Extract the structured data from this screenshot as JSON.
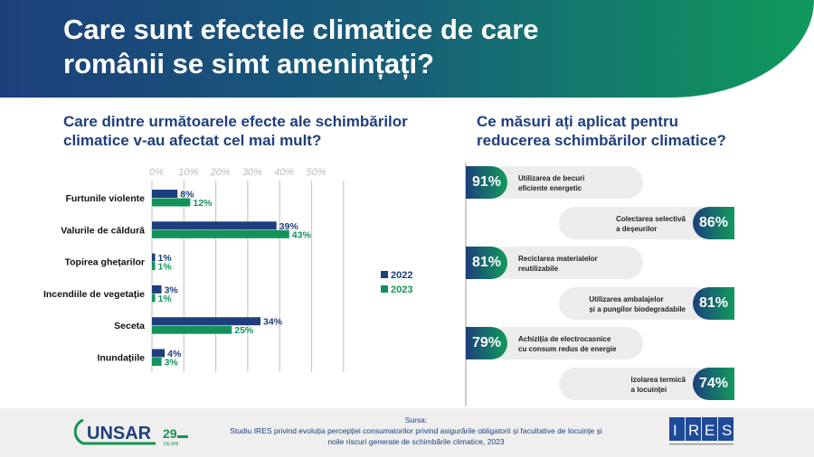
{
  "header": {
    "title": "Care sunt efectele climatice de care românii se simt amenințați?"
  },
  "left": {
    "question": "Care dintre următoarele efecte ale schimbărilor climatice v-au afectat cel mai mult?"
  },
  "right": {
    "question": "Ce măsuri ați aplicat pentru reducerea schimbărilor climatice?",
    "items": [
      {
        "value": "91%",
        "label1": "Utilizarea de becuri",
        "label2": "eficiente energetic"
      },
      {
        "value": "86%",
        "label1": "Colectarea selectivă",
        "label2": "a deșeurilor"
      },
      {
        "value": "81%",
        "label1": "Reciclarea materialelor",
        "label2": "reutilizabile"
      },
      {
        "value": "81%",
        "label1": "Utilizarea ambalajelor",
        "label2": "și a pungilor biodegradabile"
      },
      {
        "value": "79%",
        "label1": "Achiziția de electrocasnice",
        "label2": "cu consum redus de energie"
      },
      {
        "value": "74%",
        "label1": "Izolarea termică",
        "label2": "a locuinței"
      }
    ]
  },
  "chart_data": {
    "type": "bar",
    "orientation": "horizontal",
    "categories": [
      "Furtunile violente",
      "Valurile de căldură",
      "Topirea ghețarilor",
      "Incendiile de vegetație",
      "Seceta",
      "Inundațiile"
    ],
    "series": [
      {
        "name": "2022",
        "color": "#1e3f7d",
        "values": [
          8,
          39,
          1,
          3,
          34,
          4
        ]
      },
      {
        "name": "2023",
        "color": "#13935b",
        "values": [
          12,
          43,
          1,
          1,
          25,
          3
        ]
      }
    ],
    "xticks": [
      "0%",
      "10%",
      "20%",
      "30%",
      "40%",
      "50%"
    ],
    "xlim": [
      0,
      60
    ],
    "legend": "right"
  },
  "footer": {
    "logo_left": "UNSAR 29 DE ANI",
    "source_label": "Sursa:",
    "source_text": "Studiu IRES privind evoluția percepției consumatorilor privind asigurările obligatorii și facultative de locuințe și noile riscuri generate de schimbările climatice, 2023",
    "logo_right": "IRES"
  }
}
